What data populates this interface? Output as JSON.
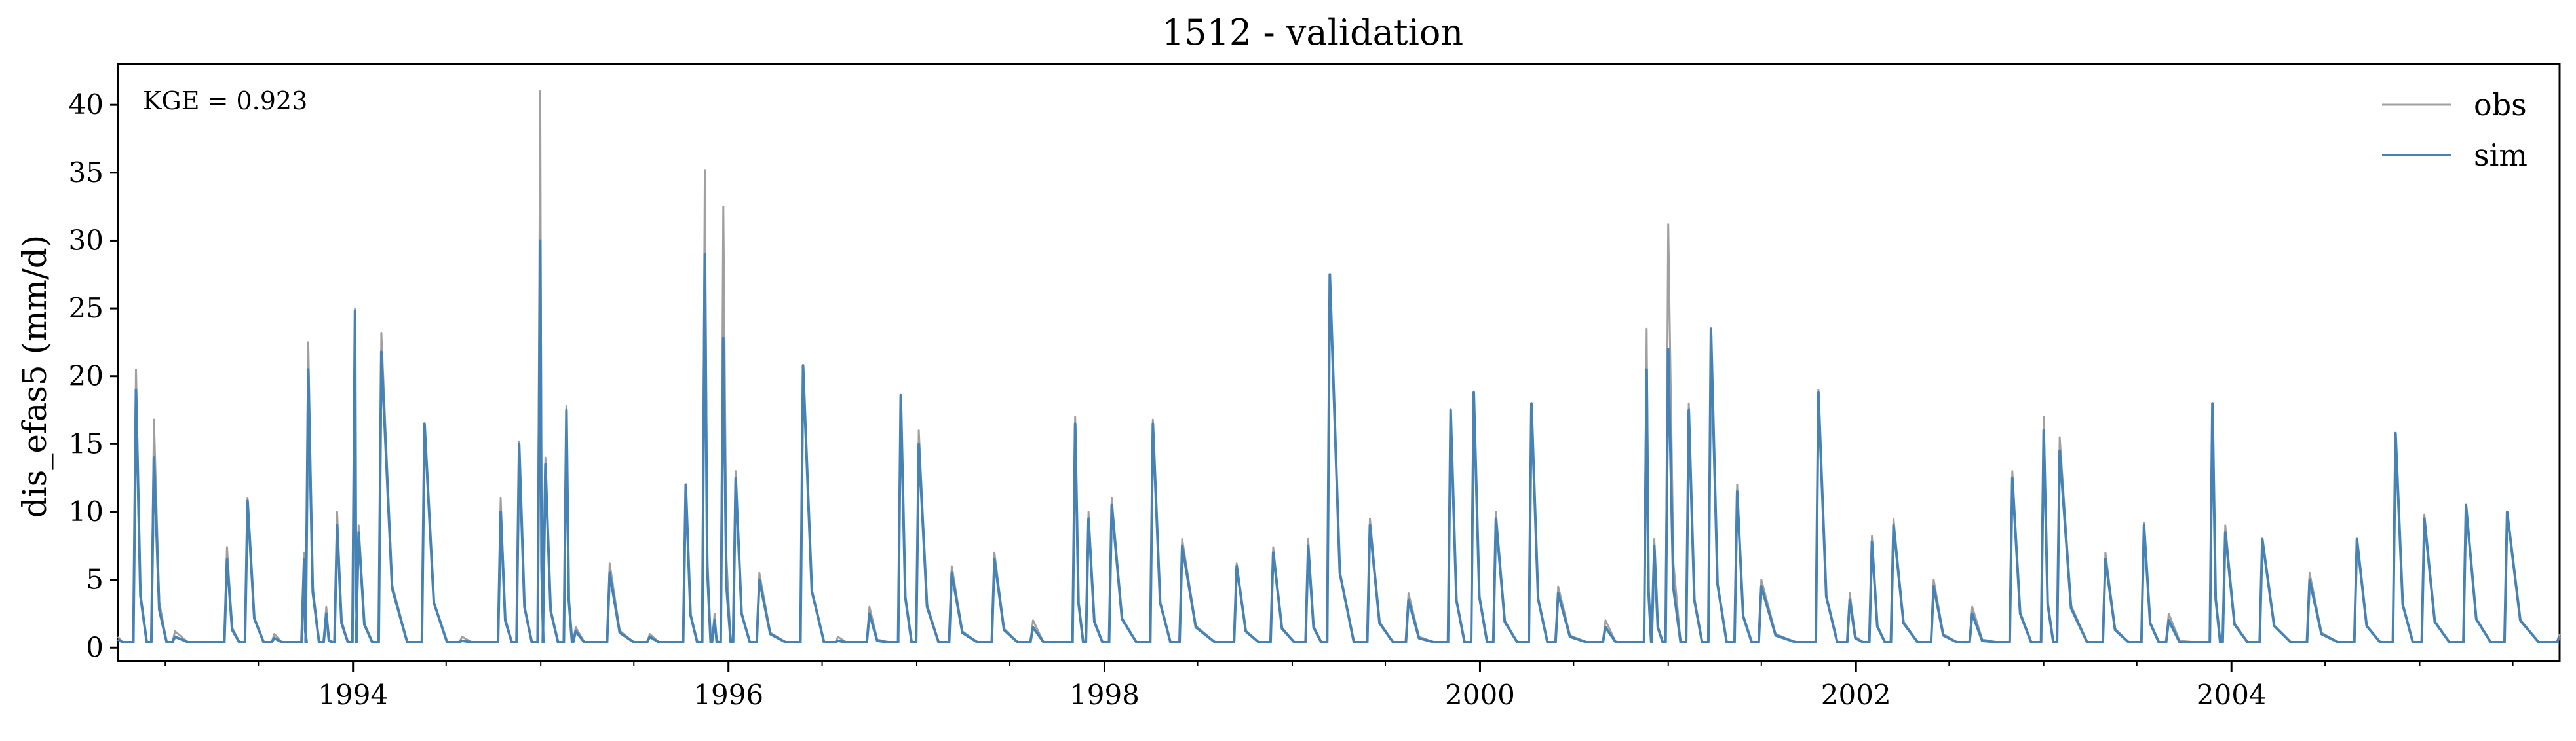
{
  "chart_data": {
    "type": "line",
    "title": "1512 - validation",
    "xlabel": "",
    "ylabel": "dis_efas5 (mm/d)",
    "xlim": [
      "1992-10-01",
      "2005-09-30"
    ],
    "ylim": [
      -1,
      43
    ],
    "x_ticks": [
      "1994",
      "1996",
      "1998",
      "2000",
      "2002",
      "2004"
    ],
    "y_ticks": [
      0,
      5,
      10,
      15,
      20,
      25,
      30,
      35,
      40
    ],
    "annotation": "KGE = 0.923",
    "grid": false,
    "legend_position": "top-right",
    "colors": {
      "obs": "#a0a0a0",
      "sim": "#4682b4"
    },
    "series": [
      {
        "name": "obs",
        "x": [
          "1992-10-01",
          "1992-11-05",
          "1992-12-10",
          "1993-01-20",
          "1993-05-01",
          "1993-06-10",
          "1993-08-01",
          "1993-09-28",
          "1993-10-06",
          "1993-11-10",
          "1993-12-01",
          "1994-01-05",
          "1994-01-12",
          "1994-02-25",
          "1994-05-20",
          "1994-08-01",
          "1994-10-15",
          "1994-11-20",
          "1994-12-31",
          "1995-01-10",
          "1995-02-20",
          "1995-03-10",
          "1995-05-15",
          "1995-08-01",
          "1995-10-10",
          "1995-11-16",
          "1995-12-05",
          "1995-12-22",
          "1996-01-15",
          "1996-03-01",
          "1996-05-25",
          "1996-08-01",
          "1996-10-01",
          "1996-12-01",
          "1997-01-05",
          "1997-03-10",
          "1997-06-01",
          "1997-08-15",
          "1997-11-05",
          "1997-12-01",
          "1998-01-15",
          "1998-04-05",
          "1998-06-01",
          "1998-09-15",
          "1998-11-25",
          "1999-02-01",
          "1999-03-15",
          "1999-06-01",
          "1999-08-15",
          "1999-11-05",
          "1999-12-20",
          "2000-02-01",
          "2000-04-10",
          "2000-06-01",
          "2000-09-01",
          "2000-11-20",
          "2000-12-05",
          "2001-01-01",
          "2001-02-10",
          "2001-03-25",
          "2001-05-15",
          "2001-07-01",
          "2001-10-20",
          "2001-12-20",
          "2002-02-01",
          "2002-03-15",
          "2002-06-01",
          "2002-08-15",
          "2002-11-01",
          "2003-01-01",
          "2003-02-01",
          "2003-05-01",
          "2003-07-15",
          "2003-09-01",
          "2003-11-25",
          "2003-12-20",
          "2004-03-01",
          "2004-06-01",
          "2004-09-01",
          "2004-11-15",
          "2005-01-10",
          "2005-04-01",
          "2005-06-20",
          "2005-09-30"
        ],
        "values": [
          0.8,
          20.5,
          16.8,
          1.2,
          7.4,
          11.0,
          1.0,
          7.0,
          22.5,
          3.0,
          10.0,
          25.0,
          9.0,
          23.2,
          16.5,
          0.8,
          11.0,
          15.2,
          41.0,
          14.0,
          17.8,
          1.5,
          6.2,
          1.0,
          12.0,
          35.2,
          2.5,
          32.5,
          13.0,
          5.5,
          20.8,
          0.8,
          3.0,
          18.6,
          16.0,
          6.0,
          7.0,
          2.0,
          17.0,
          10.0,
          11.0,
          16.8,
          8.0,
          6.2,
          7.4,
          8.0,
          27.5,
          9.5,
          4.0,
          17.5,
          18.8,
          10.0,
          18.0,
          4.5,
          2.0,
          23.5,
          8.0,
          31.2,
          18.0,
          23.5,
          12.0,
          5.0,
          19.0,
          4.0,
          8.2,
          9.5,
          5.0,
          3.0,
          13.0,
          17.0,
          15.5,
          7.0,
          9.2,
          2.5,
          17.5,
          9.0,
          8.0,
          5.5,
          8.0,
          15.8,
          9.8,
          10.5,
          10.0,
          1.0
        ]
      },
      {
        "name": "sim",
        "x": [
          "1992-10-01",
          "1992-11-05",
          "1992-12-10",
          "1993-01-20",
          "1993-05-01",
          "1993-06-10",
          "1993-08-01",
          "1993-09-28",
          "1993-10-06",
          "1993-11-10",
          "1993-12-01",
          "1994-01-05",
          "1994-01-12",
          "1994-02-25",
          "1994-05-20",
          "1994-08-01",
          "1994-10-15",
          "1994-11-20",
          "1994-12-31",
          "1995-01-10",
          "1995-02-20",
          "1995-03-10",
          "1995-05-15",
          "1995-08-01",
          "1995-10-10",
          "1995-11-16",
          "1995-12-05",
          "1995-12-22",
          "1996-01-15",
          "1996-03-01",
          "1996-05-25",
          "1996-08-01",
          "1996-10-01",
          "1996-12-01",
          "1997-01-05",
          "1997-03-10",
          "1997-06-01",
          "1997-08-15",
          "1997-11-05",
          "1997-12-01",
          "1998-01-15",
          "1998-04-05",
          "1998-06-01",
          "1998-09-15",
          "1998-11-25",
          "1999-02-01",
          "1999-03-15",
          "1999-06-01",
          "1999-08-15",
          "1999-11-05",
          "1999-12-20",
          "2000-02-01",
          "2000-04-10",
          "2000-06-01",
          "2000-09-01",
          "2000-11-20",
          "2000-12-05",
          "2001-01-01",
          "2001-02-10",
          "2001-03-25",
          "2001-05-15",
          "2001-07-01",
          "2001-10-20",
          "2001-12-20",
          "2002-02-01",
          "2002-03-15",
          "2002-06-01",
          "2002-08-15",
          "2002-11-01",
          "2003-01-01",
          "2003-02-01",
          "2003-05-01",
          "2003-07-15",
          "2003-09-01",
          "2003-11-25",
          "2003-12-20",
          "2004-03-01",
          "2004-06-01",
          "2004-09-01",
          "2004-11-15",
          "2005-01-10",
          "2005-04-01",
          "2005-06-20",
          "2005-09-30"
        ],
        "values": [
          0.6,
          19.0,
          14.0,
          0.8,
          6.5,
          10.8,
          0.7,
          6.5,
          20.5,
          2.5,
          9.0,
          24.8,
          8.5,
          21.8,
          16.5,
          0.5,
          10.0,
          15.0,
          30.0,
          13.5,
          17.5,
          1.2,
          5.5,
          0.8,
          12.0,
          29.0,
          2.0,
          22.8,
          12.5,
          5.0,
          20.8,
          0.5,
          2.5,
          18.6,
          15.0,
          5.5,
          6.5,
          1.5,
          16.5,
          9.5,
          10.5,
          16.5,
          7.5,
          6.0,
          7.0,
          7.5,
          27.5,
          9.0,
          3.5,
          17.5,
          18.8,
          9.5,
          18.0,
          4.0,
          1.5,
          20.5,
          7.5,
          22.0,
          17.5,
          23.5,
          11.5,
          4.5,
          18.8,
          3.5,
          7.8,
          9.0,
          4.5,
          2.5,
          12.5,
          16.0,
          14.5,
          6.5,
          9.0,
          2.0,
          18.0,
          8.5,
          8.0,
          5.0,
          8.0,
          15.8,
          9.5,
          10.5,
          10.0,
          0.8
        ]
      }
    ]
  }
}
